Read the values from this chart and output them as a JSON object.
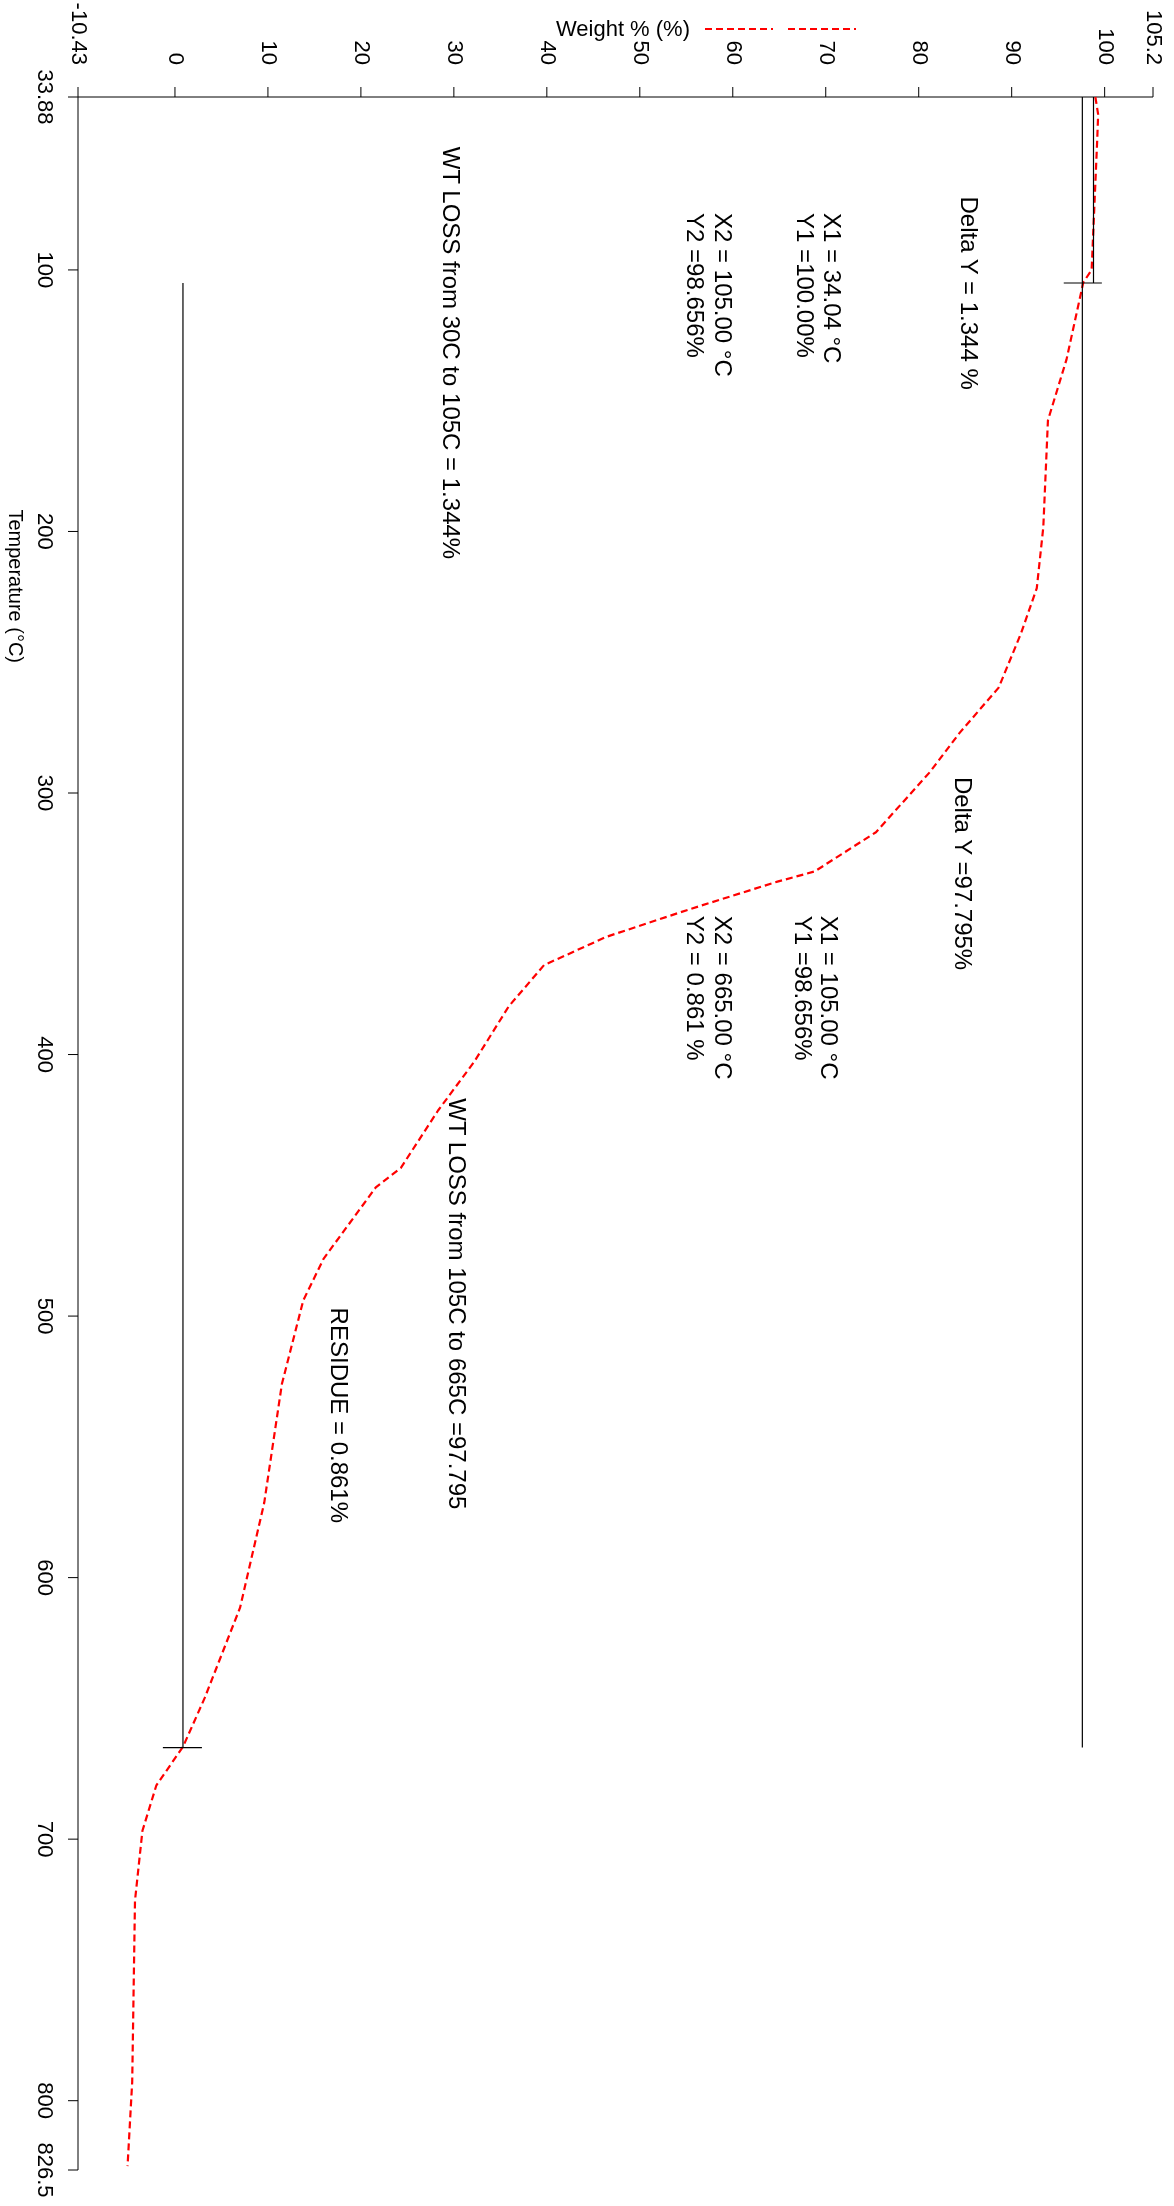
{
  "chart_data": {
    "type": "line",
    "ylabel": "Temperature (°C)",
    "xlim": [
      -10.43,
      105.2
    ],
    "ylim": [
      826.5,
      33.88
    ],
    "xticks": [
      -10.43,
      0,
      10,
      20,
      30,
      40,
      50,
      60,
      70,
      80,
      90,
      100,
      105.2
    ],
    "yticks": [
      33.88,
      100,
      200,
      300,
      400,
      500,
      600,
      700,
      800,
      826.5
    ],
    "legend": "top",
    "series": [
      {
        "name": "Weight % (%)",
        "color": "#ff0000",
        "line_style": "dashed",
        "x": [
          99.0,
          99.3,
          99.2,
          98.6,
          97.7,
          95.9,
          93.9,
          93.4,
          92.7,
          91.0,
          88.6,
          84.4,
          81.2,
          75.4,
          68.8,
          64.7,
          55.4,
          46.4,
          39.7,
          35.9,
          32.2,
          28.3,
          24.3,
          21.6,
          16.0,
          13.8,
          11.5,
          9.6,
          7.0,
          3.2,
          0.86,
          -2.0,
          -3.5,
          -4.3,
          -4.6,
          -5.1
        ],
        "values": [
          33.88,
          40.5,
          50.3,
          100,
          104.8,
          134.2,
          157.5,
          198.4,
          221.7,
          239,
          259.7,
          277,
          292,
          315,
          330,
          334,
          344.4,
          355,
          365.8,
          381.6,
          402.7,
          421.4,
          443.3,
          450.8,
          478,
          494,
          526,
          571.4,
          611.5,
          646,
          664.7,
          679.4,
          696.8,
          723.5,
          792.8,
          825
        ]
      },
      {
        "color": "#000000",
        "line_style": "solid",
        "x": [
          98.8,
          98.8
        ],
        "values": [
          33.88,
          105
        ]
      },
      {
        "color": "#000000",
        "line_style": "solid",
        "x": [
          97.6,
          97.6
        ],
        "values": [
          33.88,
          665
        ]
      },
      {
        "color": "#000000",
        "line_style": "solid",
        "x": [
          0.86,
          0.86
        ],
        "values": [
          105,
          665
        ]
      },
      {
        "color": "#000000",
        "line_style": "solid",
        "x": [
          95.6,
          99.7
        ],
        "values": [
          105,
          105
        ]
      },
      {
        "color": "#000000",
        "line_style": "solid",
        "x": [
          -1.3,
          2.9
        ],
        "values": [
          665,
          665
        ]
      }
    ],
    "annotations": [
      "Delta Y = 1.344 %",
      "X1 = 34.04 °C",
      "Y1 =100.00%",
      "X2 = 105.00 °C",
      "Y2 =98.656%",
      "WT LOSS from 30C to 105C = 1.344%",
      "Delta Y =97.795%",
      "X1 = 105.00 °C",
      "Y1 =98.656%",
      "X2 = 665.00 °C",
      "Y2 = 0.861 %",
      "WT LOSS from 105C to 665C =97.795",
      "RESIDUE = 0.861%"
    ]
  }
}
